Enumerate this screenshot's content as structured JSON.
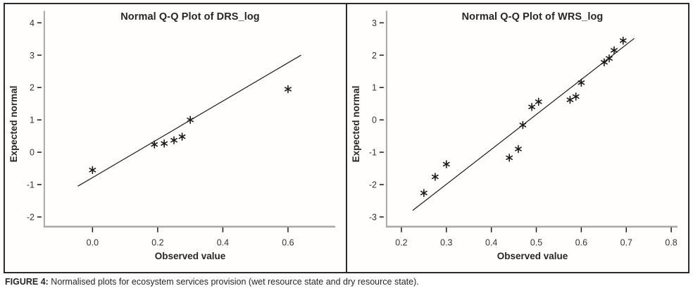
{
  "figure": {
    "caption_prefix": "FIGURE 4:",
    "caption_text": " Normalised plots for ecosystem services provision (wet resource state and dry resource state)."
  },
  "colors": {
    "axis_line": "#a8a8a8",
    "tick": "#1a1a1a",
    "marker": "#1a1a1a",
    "trend_line": "#1a1a1a",
    "border": "#2b2b2b",
    "text": "#262626"
  },
  "chart_data": [
    {
      "type": "scatter",
      "title": "Normal Q-Q Plot of DRS_log",
      "xlabel": "Observed value",
      "ylabel": "Expected normal",
      "xlim": [
        -0.148,
        0.745
      ],
      "ylim": [
        -2.3,
        4.37
      ],
      "xticks": [
        "0.0",
        "0.2",
        "0.4",
        "0.6"
      ],
      "yticks": [
        4,
        3,
        2,
        1,
        0,
        -1,
        -2
      ],
      "grid": false,
      "legend": null,
      "marker": "asterisk",
      "points": [
        [
          0.0,
          -0.55
        ],
        [
          0.19,
          0.24
        ],
        [
          0.22,
          0.27
        ],
        [
          0.25,
          0.37
        ],
        [
          0.275,
          0.48
        ],
        [
          0.3,
          1.0
        ],
        [
          0.6,
          1.95
        ]
      ],
      "trend_line": {
        "x1": -0.045,
        "y1": -1.05,
        "x2": 0.64,
        "y2": 3.0
      }
    },
    {
      "type": "scatter",
      "title": "Normal Q-Q Plot of WRS_log",
      "xlabel": "Observed value",
      "ylabel": "Expected normal",
      "xlim": [
        0.167,
        0.814
      ],
      "ylim": [
        -3.3,
        3.37
      ],
      "xticks": [
        "0.2",
        "0.3",
        "0.4",
        "0.5",
        "0.6",
        "0.7",
        "0.8"
      ],
      "yticks": [
        3,
        2,
        1,
        0,
        -1,
        -2,
        -3
      ],
      "grid": false,
      "legend": null,
      "marker": "asterisk",
      "points": [
        [
          0.25,
          -2.26
        ],
        [
          0.275,
          -1.76
        ],
        [
          0.3,
          -1.37
        ],
        [
          0.44,
          -1.17
        ],
        [
          0.46,
          -0.9
        ],
        [
          0.47,
          -0.16
        ],
        [
          0.49,
          0.4
        ],
        [
          0.505,
          0.56
        ],
        [
          0.575,
          0.62
        ],
        [
          0.588,
          0.72
        ],
        [
          0.6,
          1.15
        ],
        [
          0.651,
          1.78
        ],
        [
          0.662,
          1.9
        ],
        [
          0.673,
          2.15
        ],
        [
          0.693,
          2.45
        ]
      ],
      "trend_line": {
        "x1": 0.225,
        "y1": -2.8,
        "x2": 0.718,
        "y2": 2.52
      }
    }
  ]
}
